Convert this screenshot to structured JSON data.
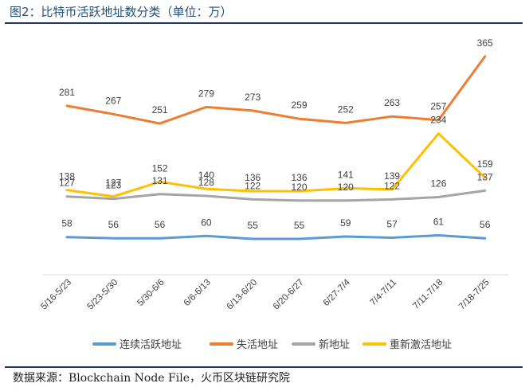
{
  "title": "图2：比特币活跃地址数分类（单位：万）",
  "source": "数据来源：Blockchain Node File，火币区块链研究院",
  "chart_data": {
    "type": "line",
    "categories": [
      "5/16-5/23",
      "5/23-5/30",
      "5/30-6/6",
      "6/6-6/13",
      "6/13-6/20",
      "6/20-6/27",
      "6/27-7/4",
      "7/4-7/11",
      "7/11-7/18",
      "7/18-7/25"
    ],
    "series": [
      {
        "name": "连续活跃地址",
        "color": "#5b9bd5",
        "values": [
          58,
          56,
          56,
          60,
          55,
          55,
          59,
          57,
          61,
          56
        ]
      },
      {
        "name": "失活地址",
        "color": "#ed7d31",
        "values": [
          281,
          267,
          251,
          279,
          273,
          259,
          252,
          263,
          257,
          365
        ]
      },
      {
        "name": "新地址",
        "color": "#a5a5a5",
        "values": [
          127,
          123,
          131,
          128,
          122,
          120,
          120,
          122,
          126,
          137
        ]
      },
      {
        "name": "重新激活地址",
        "color": "#ffc000",
        "values": [
          138,
          127,
          152,
          140,
          136,
          136,
          141,
          139,
          234,
          159
        ]
      }
    ],
    "legend_position": "bottom",
    "grid": false
  }
}
